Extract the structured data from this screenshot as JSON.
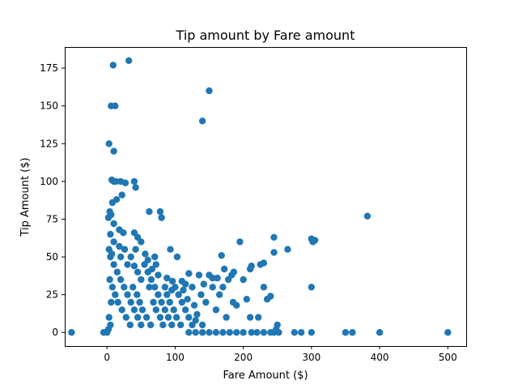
{
  "chart_data": {
    "type": "scatter",
    "title": "Tip amount by Fare amount",
    "xlabel": "Fare Amount ($)",
    "ylabel": "Tip Amount ($)",
    "xlim": [
      -62,
      527
    ],
    "ylim": [
      -9,
      189
    ],
    "xticks": [
      0,
      100,
      200,
      300,
      400,
      500
    ],
    "yticks": [
      0,
      25,
      50,
      75,
      100,
      125,
      150,
      175
    ],
    "grid": false,
    "marker_color": "#1f77b4",
    "series": [
      {
        "points": [
          [
            -52,
            0
          ],
          [
            -5,
            0
          ],
          [
            0,
            0
          ],
          [
            500,
            0
          ],
          [
            400,
            0
          ],
          [
            360,
            0
          ],
          [
            350,
            0
          ],
          [
            300,
            0
          ],
          [
            285,
            0
          ],
          [
            275,
            0
          ],
          [
            252,
            0
          ],
          [
            245,
            0
          ],
          [
            240,
            0
          ],
          [
            230,
            0
          ],
          [
            220,
            0
          ],
          [
            212,
            0
          ],
          [
            200,
            0
          ],
          [
            190,
            0
          ],
          [
            180,
            0
          ],
          [
            170,
            0
          ],
          [
            160,
            0
          ],
          [
            150,
            0
          ],
          [
            140,
            0
          ],
          [
            130,
            0
          ],
          [
            120,
            0
          ],
          [
            32,
            180
          ],
          [
            9,
            177
          ],
          [
            150,
            160
          ],
          [
            6,
            150
          ],
          [
            12,
            150
          ],
          [
            140,
            140
          ],
          [
            3,
            125
          ],
          [
            10,
            120
          ],
          [
            7,
            101
          ],
          [
            10,
            100
          ],
          [
            13,
            100
          ],
          [
            20,
            100
          ],
          [
            27,
            99
          ],
          [
            40,
            100
          ],
          [
            42,
            96
          ],
          [
            22,
            91
          ],
          [
            14,
            88
          ],
          [
            8,
            86
          ],
          [
            4,
            80
          ],
          [
            6,
            78
          ],
          [
            2,
            76
          ],
          [
            62,
            80
          ],
          [
            78,
            80
          ],
          [
            80,
            76
          ],
          [
            382,
            77
          ],
          [
            10,
            72
          ],
          [
            18,
            68
          ],
          [
            24,
            66
          ],
          [
            5,
            65
          ],
          [
            40,
            66
          ],
          [
            45,
            63
          ],
          [
            50,
            60
          ],
          [
            10,
            60
          ],
          [
            300,
            62
          ],
          [
            305,
            61
          ],
          [
            302,
            60
          ],
          [
            195,
            60
          ],
          [
            245,
            63
          ],
          [
            265,
            55
          ],
          [
            245,
            53
          ],
          [
            168,
            51
          ],
          [
            93,
            55
          ],
          [
            103,
            50
          ],
          [
            70,
            50
          ],
          [
            60,
            48
          ],
          [
            225,
            45
          ],
          [
            230,
            46
          ],
          [
            212,
            44
          ],
          [
            210,
            42
          ],
          [
            186,
            40
          ],
          [
            172,
            42
          ],
          [
            183,
            38
          ],
          [
            162,
            36
          ],
          [
            150,
            38
          ],
          [
            135,
            38
          ],
          [
            120,
            39
          ],
          [
            200,
            35
          ],
          [
            300,
            30
          ],
          [
            230,
            30
          ],
          [
            235,
            22
          ],
          [
            240,
            24
          ],
          [
            205,
            22
          ],
          [
            185,
            20
          ],
          [
            190,
            18
          ],
          [
            210,
            10
          ],
          [
            222,
            10
          ],
          [
            160,
            15
          ],
          [
            175,
            10
          ],
          [
            140,
            5
          ],
          [
            130,
            8
          ],
          [
            250,
            5
          ],
          [
            248,
            2
          ],
          [
            5,
            50
          ],
          [
            10,
            45
          ],
          [
            15,
            40
          ],
          [
            20,
            35
          ],
          [
            25,
            30
          ],
          [
            30,
            25
          ],
          [
            35,
            20
          ],
          [
            40,
            15
          ],
          [
            45,
            10
          ],
          [
            50,
            5
          ],
          [
            55,
            45
          ],
          [
            60,
            40
          ],
          [
            65,
            35
          ],
          [
            70,
            30
          ],
          [
            75,
            25
          ],
          [
            80,
            20
          ],
          [
            85,
            15
          ],
          [
            90,
            10
          ],
          [
            95,
            5
          ],
          [
            100,
            30
          ],
          [
            105,
            25
          ],
          [
            110,
            20
          ],
          [
            115,
            15
          ],
          [
            120,
            10
          ],
          [
            125,
            5
          ],
          [
            8,
            30
          ],
          [
            12,
            25
          ],
          [
            16,
            20
          ],
          [
            22,
            15
          ],
          [
            28,
            10
          ],
          [
            34,
            5
          ],
          [
            38,
            30
          ],
          [
            44,
            25
          ],
          [
            48,
            20
          ],
          [
            52,
            15
          ],
          [
            58,
            10
          ],
          [
            64,
            5
          ],
          [
            68,
            20
          ],
          [
            72,
            15
          ],
          [
            78,
            10
          ],
          [
            82,
            5
          ],
          [
            88,
            25
          ],
          [
            92,
            20
          ],
          [
            98,
            15
          ],
          [
            102,
            10
          ],
          [
            108,
            5
          ],
          [
            112,
            28
          ],
          [
            118,
            22
          ],
          [
            128,
            18
          ],
          [
            132,
            12
          ],
          [
            138,
            25
          ],
          [
            145,
            20
          ],
          [
            155,
            30
          ],
          [
            165,
            25
          ],
          [
            170,
            30
          ],
          [
            178,
            35
          ],
          [
            3,
            55
          ],
          [
            7,
            52
          ],
          [
            4,
            35
          ],
          [
            6,
            20
          ],
          [
            3,
            10
          ],
          [
            5,
            5
          ],
          [
            2,
            2
          ],
          [
            20,
            50
          ],
          [
            30,
            45
          ],
          [
            35,
            50
          ],
          [
            45,
            40
          ],
          [
            50,
            35
          ],
          [
            62,
            30
          ],
          [
            75,
            38
          ],
          [
            85,
            30
          ],
          [
            95,
            28
          ],
          [
            115,
            32
          ],
          [
            125,
            30
          ],
          [
            142,
            32
          ],
          [
            155,
            36
          ],
          [
            26,
            55
          ],
          [
            18,
            57
          ],
          [
            42,
            55
          ],
          [
            56,
            52
          ],
          [
            110,
            34
          ],
          [
            96,
            34
          ],
          [
            88,
            36
          ],
          [
            66,
            42
          ],
          [
            72,
            45
          ],
          [
            40,
            44
          ]
        ]
      }
    ]
  }
}
